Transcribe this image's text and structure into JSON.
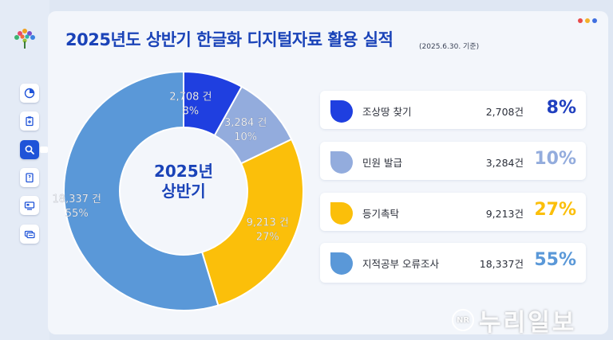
{
  "header": {
    "title": "2025년도 상반기 한글화 디지털자료 활용 실적",
    "subtitle": "(2025.6.30. 기준)"
  },
  "sidebar": {
    "items": [
      {
        "icon": "pie-chart-icon"
      },
      {
        "icon": "clipboard-icon"
      },
      {
        "icon": "search-icon",
        "active": true
      },
      {
        "icon": "document-icon"
      },
      {
        "icon": "monitor-icon"
      },
      {
        "icon": "card-icon"
      }
    ]
  },
  "window_dots": [
    "#e84b4b",
    "#f3b12a",
    "#3f6fe0"
  ],
  "chart_data": {
    "type": "donut",
    "center_label": [
      "2025년",
      "상반기"
    ],
    "series": [
      {
        "name": "조상땅 찾기",
        "value": 2708,
        "value_label": "2,708 건",
        "count_label": "2,708건",
        "percent_label": "8%",
        "color": "#1f3fe0"
      },
      {
        "name": "민원 발급",
        "value": 3284,
        "value_label": "3,284 건",
        "count_label": "3,284건",
        "percent_label": "10%",
        "color": "#93acdd"
      },
      {
        "name": "등기촉탁",
        "value": 9213,
        "value_label": "9,213 건",
        "count_label": "9,213건",
        "percent_label": "27%",
        "color": "#fbbf0a"
      },
      {
        "name": "지적공부 오류조사",
        "value": 18337,
        "value_label": "18,337 건",
        "count_label": "18,337건",
        "percent_label": "55%",
        "color": "#5a98d8"
      }
    ]
  },
  "watermark": {
    "badge": "NR",
    "text": "누리일보"
  }
}
